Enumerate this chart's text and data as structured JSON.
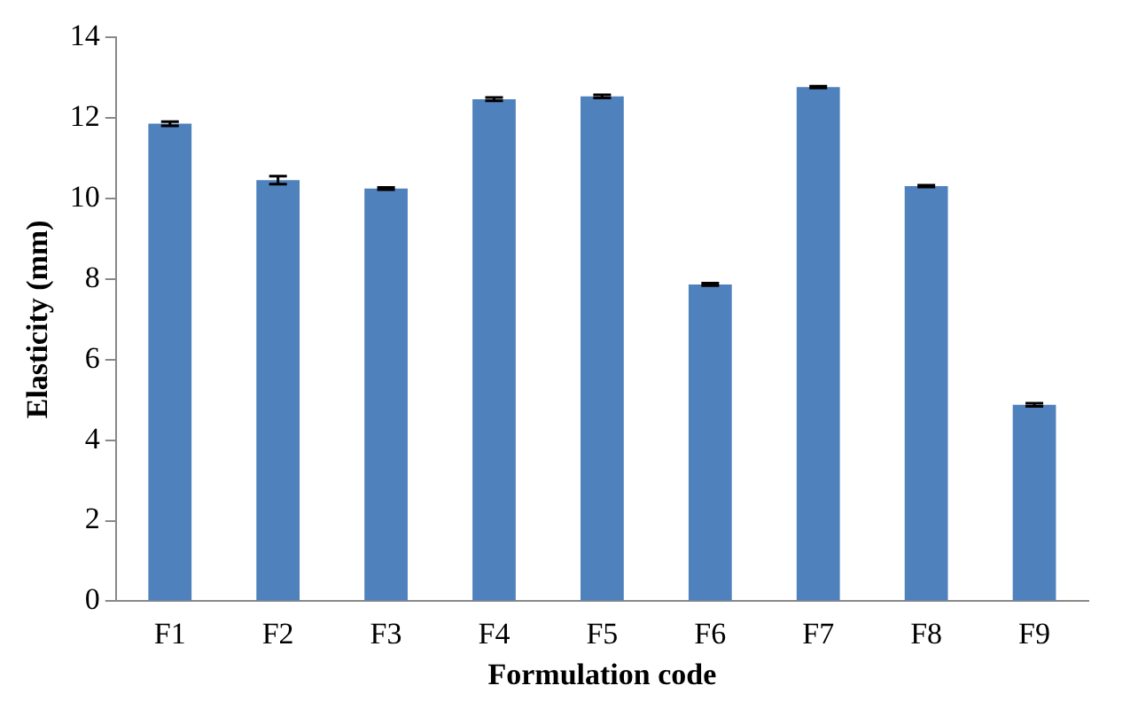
{
  "chart_data": {
    "type": "bar",
    "xlabel": "Formulation code",
    "ylabel": "Elasticity (mm)",
    "categories": [
      "F1",
      "F2",
      "F3",
      "F4",
      "F5",
      "F6",
      "F7",
      "F8",
      "F9"
    ],
    "values": [
      11.86,
      10.46,
      10.25,
      12.47,
      12.54,
      7.87,
      12.77,
      10.31,
      4.88
    ],
    "errors": [
      0.05,
      0.1,
      0.03,
      0.04,
      0.04,
      0.03,
      0.02,
      0.02,
      0.04
    ],
    "color": "#4f81bd",
    "ylim": [
      0,
      14
    ],
    "yticks": [
      0,
      2,
      4,
      6,
      8,
      10,
      12,
      14
    ],
    "grid": false,
    "legend": false
  }
}
